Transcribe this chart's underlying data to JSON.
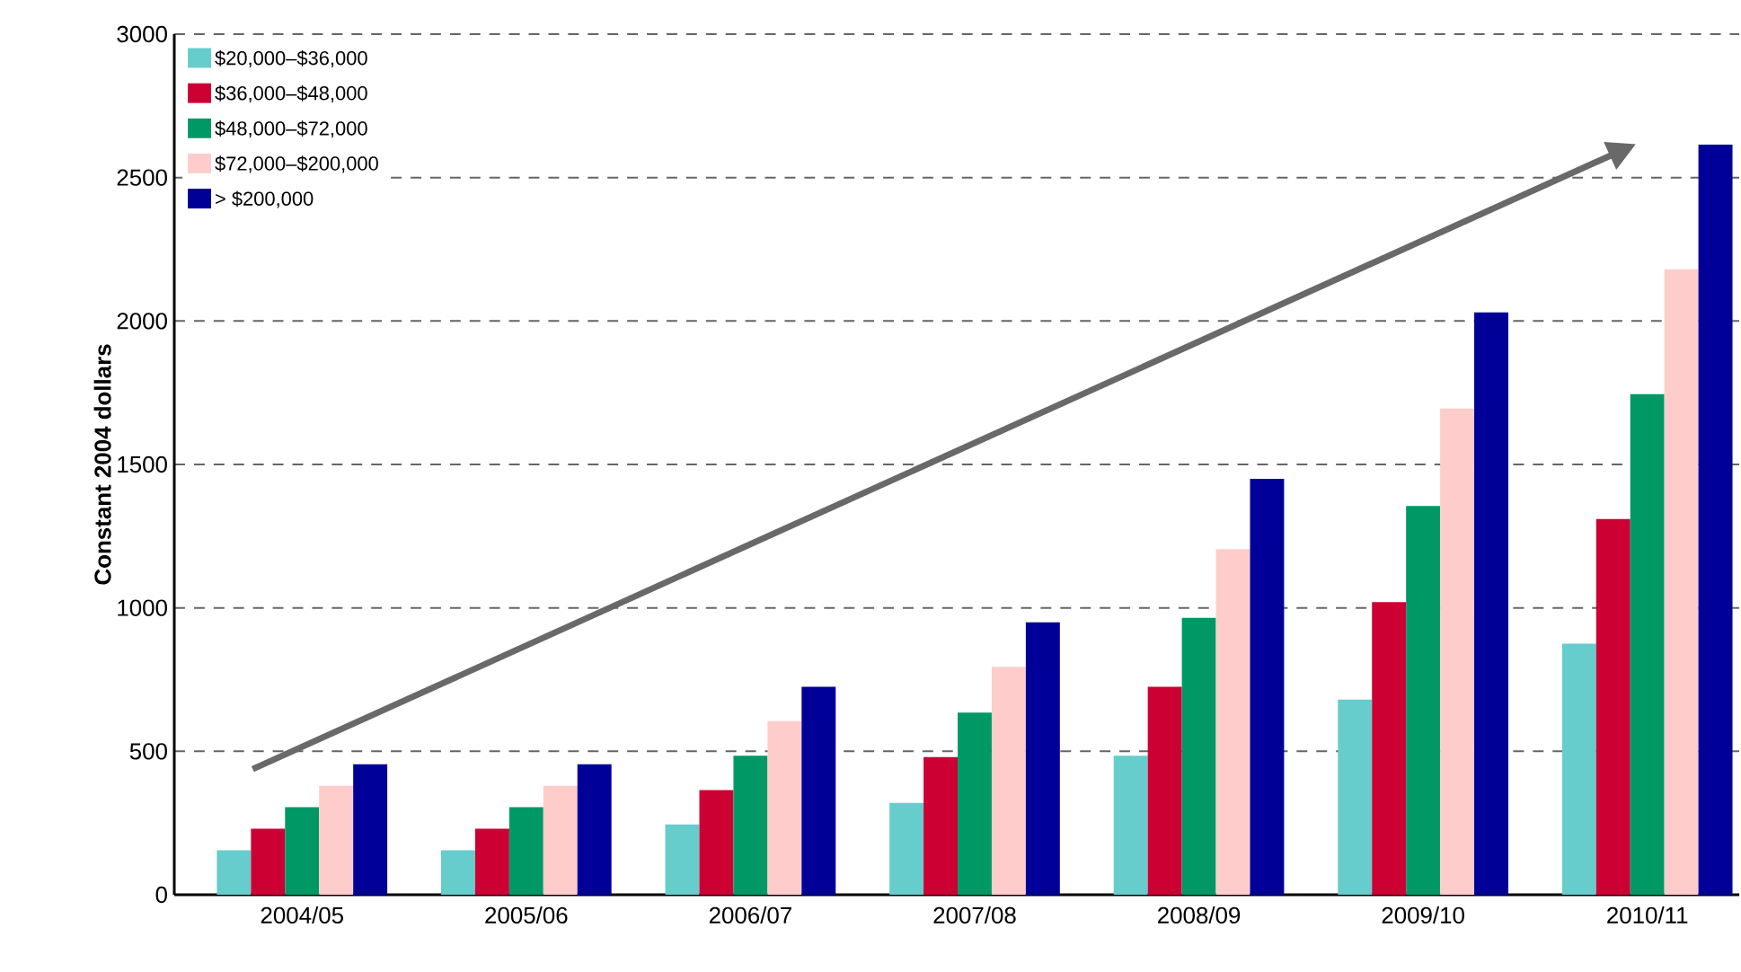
{
  "chart_data": {
    "type": "bar",
    "ylabel": "Constant 2004 dollars",
    "categories": [
      "2004/05",
      "2005/06",
      "2006/07",
      "2007/08",
      "2008/09",
      "2009/10",
      "2010/11"
    ],
    "series": [
      {
        "name": "$20,000–$36,000",
        "color": "#66cccc",
        "values": [
          155,
          155,
          245,
          320,
          485,
          680,
          875
        ]
      },
      {
        "name": "$36,000–$48,000",
        "color": "#cc0033",
        "values": [
          230,
          230,
          365,
          480,
          725,
          1020,
          1310
        ]
      },
      {
        "name": "$48,000–$72,000",
        "color": "#009966",
        "values": [
          305,
          305,
          485,
          635,
          965,
          1355,
          1745
        ]
      },
      {
        "name": "$72,000–$200,000",
        "color": "#ffcccc",
        "values": [
          380,
          380,
          605,
          795,
          1205,
          1695,
          2180
        ]
      },
      {
        "name": "> $200,000",
        "color": "#000099",
        "values": [
          455,
          455,
          725,
          950,
          1450,
          2030,
          2615
        ]
      }
    ],
    "ylim": [
      0,
      3000
    ],
    "yticks": [
      0,
      500,
      1000,
      1500,
      2000,
      2500,
      3000
    ],
    "grid": "y",
    "legend": "top left"
  }
}
